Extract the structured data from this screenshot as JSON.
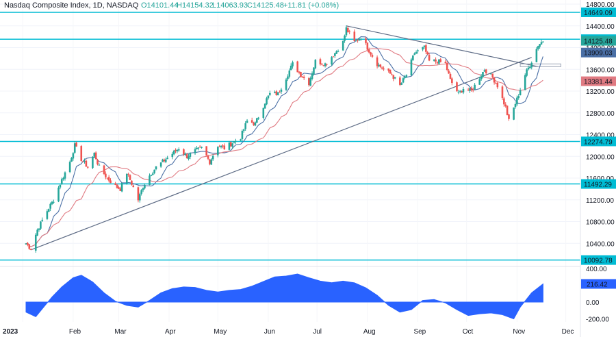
{
  "header": {
    "symbol": "Nasdaq Composite Index, 1D, NASDAQ",
    "open": "O14101.44",
    "high": "H14154.32",
    "low": "L14063.93",
    "close": "C14125.48",
    "change": "+11.81 (+0.08%)"
  },
  "colors": {
    "up": "#26a69a",
    "down": "#ef5350",
    "level": "#00bcd4",
    "trend": "#5d6b85",
    "ma_fast": "#4a6fa5",
    "ma_slow": "#e07a82",
    "osc": "#2962ff"
  },
  "chart_data": [
    {
      "type": "candlestick",
      "title": "Nasdaq Composite Index, 1D, NASDAQ",
      "ylim": [
        10000,
        14800
      ],
      "x_ticks": [
        "2023",
        "Feb",
        "Mar",
        "Apr",
        "May",
        "Jun",
        "Jul",
        "Aug",
        "Sep",
        "Oct",
        "Nov",
        "Dec"
      ],
      "y_ticks": [
        10400,
        10800,
        11200,
        11600,
        12000,
        12400,
        12800,
        13200,
        13600,
        14000,
        14400,
        14800
      ],
      "y_tick_labels": [
        "10400.00",
        "10800.00",
        "11200.00",
        "11600.00",
        "12000.00",
        "12400.00",
        "12800.00",
        "13200.00",
        "13600.00",
        "14000.00",
        "14400.00",
        "14800.00"
      ],
      "levels": [
        14649.09,
        14155.03,
        12274.79,
        11492.29,
        10092.78
      ],
      "level_labels": [
        "14649.09",
        "14155.03",
        "12274.79",
        "11492.29",
        "10092.78"
      ],
      "price_badges": [
        {
          "value": 14125.48,
          "label": "14125.48",
          "color": "#26a69a"
        },
        {
          "value": 13909.03,
          "label": "13909.03",
          "color": "#4a6fa5"
        },
        {
          "value": 13381.44,
          "label": "13381.44",
          "color": "#e07a82"
        }
      ],
      "path": [
        [
          "2023-01-03",
          10400
        ],
        [
          "2023-01-06",
          10300
        ],
        [
          "2023-01-10",
          10650
        ],
        [
          "2023-01-16",
          11000
        ],
        [
          "2023-01-20",
          11200
        ],
        [
          "2023-01-24",
          11500
        ],
        [
          "2023-01-30",
          11900
        ],
        [
          "2023-02-02",
          12200
        ],
        [
          "2023-02-06",
          11950
        ],
        [
          "2023-02-10",
          11800
        ],
        [
          "2023-02-14",
          12050
        ],
        [
          "2023-02-17",
          11800
        ],
        [
          "2023-02-22",
          11600
        ],
        [
          "2023-02-27",
          11450
        ],
        [
          "2023-03-02",
          11400
        ],
        [
          "2023-03-06",
          11700
        ],
        [
          "2023-03-09",
          11500
        ],
        [
          "2023-03-13",
          11200
        ],
        [
          "2023-03-16",
          11450
        ],
        [
          "2023-03-20",
          11650
        ],
        [
          "2023-03-24",
          11800
        ],
        [
          "2023-03-28",
          11900
        ],
        [
          "2023-04-03",
          12050
        ],
        [
          "2023-04-07",
          12150
        ],
        [
          "2023-04-12",
          12000
        ],
        [
          "2023-04-17",
          12100
        ],
        [
          "2023-04-21",
          12150
        ],
        [
          "2023-04-26",
          11900
        ],
        [
          "2023-05-01",
          12200
        ],
        [
          "2023-05-05",
          12150
        ],
        [
          "2023-05-10",
          12250
        ],
        [
          "2023-05-15",
          12350
        ],
        [
          "2023-05-19",
          12650
        ],
        [
          "2023-05-24",
          12600
        ],
        [
          "2023-05-30",
          13000
        ],
        [
          "2023-06-02",
          13150
        ],
        [
          "2023-06-07",
          13150
        ],
        [
          "2023-06-12",
          13450
        ],
        [
          "2023-06-16",
          13700
        ],
        [
          "2023-06-21",
          13500
        ],
        [
          "2023-06-26",
          13350
        ],
        [
          "2023-06-30",
          13750
        ],
        [
          "2023-07-06",
          13700
        ],
        [
          "2023-07-12",
          13900
        ],
        [
          "2023-07-17",
          14100
        ],
        [
          "2023-07-19",
          14350
        ],
        [
          "2023-07-24",
          14100
        ],
        [
          "2023-07-28",
          14200
        ],
        [
          "2023-08-02",
          13950
        ],
        [
          "2023-08-07",
          13700
        ],
        [
          "2023-08-11",
          13600
        ],
        [
          "2023-08-16",
          13500
        ],
        [
          "2023-08-21",
          13300
        ],
        [
          "2023-08-25",
          13500
        ],
        [
          "2023-08-30",
          13900
        ],
        [
          "2023-09-05",
          14000
        ],
        [
          "2023-09-08",
          13750
        ],
        [
          "2023-09-13",
          13750
        ],
        [
          "2023-09-18",
          13700
        ],
        [
          "2023-09-21",
          13400
        ],
        [
          "2023-09-26",
          13150
        ],
        [
          "2023-09-29",
          13250
        ],
        [
          "2023-10-04",
          13200
        ],
        [
          "2023-10-09",
          13450
        ],
        [
          "2023-10-12",
          13600
        ],
        [
          "2023-10-17",
          13450
        ],
        [
          "2023-10-20",
          13300
        ],
        [
          "2023-10-25",
          12900
        ],
        [
          "2023-10-27",
          12650
        ],
        [
          "2023-11-01",
          13050
        ],
        [
          "2023-11-06",
          13500
        ],
        [
          "2023-11-10",
          13750
        ],
        [
          "2023-11-14",
          14050
        ],
        [
          "2023-11-17",
          14125
        ]
      ],
      "trendlines": [
        {
          "from": [
            "2023-01-06",
            10280
          ],
          "to": [
            "2023-11-10",
            13820
          ]
        },
        {
          "from": [
            "2023-07-19",
            14400
          ],
          "to": [
            "2023-11-14",
            13650
          ]
        }
      ]
    },
    {
      "type": "area",
      "ylim": [
        -300,
        400
      ],
      "y_ticks": [
        400,
        0,
        -200
      ],
      "y_tick_labels": [
        "400.00",
        "0.00",
        "-200.00"
      ],
      "last_value": 216.42,
      "last_label": "216.42",
      "series": [
        [
          "2023-01-03",
          -120
        ],
        [
          "2023-01-09",
          -175
        ],
        [
          "2023-01-13",
          -80
        ],
        [
          "2023-01-19",
          60
        ],
        [
          "2023-01-25",
          180
        ],
        [
          "2023-02-01",
          290
        ],
        [
          "2023-02-06",
          320
        ],
        [
          "2023-02-13",
          240
        ],
        [
          "2023-02-20",
          110
        ],
        [
          "2023-02-27",
          10
        ],
        [
          "2023-03-06",
          -40
        ],
        [
          "2023-03-13",
          -60
        ],
        [
          "2023-03-20",
          20
        ],
        [
          "2023-03-27",
          110
        ],
        [
          "2023-04-03",
          160
        ],
        [
          "2023-04-10",
          180
        ],
        [
          "2023-04-17",
          175
        ],
        [
          "2023-04-24",
          140
        ],
        [
          "2023-05-01",
          120
        ],
        [
          "2023-05-08",
          140
        ],
        [
          "2023-05-15",
          150
        ],
        [
          "2023-05-22",
          190
        ],
        [
          "2023-05-29",
          245
        ],
        [
          "2023-06-05",
          300
        ],
        [
          "2023-06-12",
          310
        ],
        [
          "2023-06-19",
          335
        ],
        [
          "2023-06-26",
          290
        ],
        [
          "2023-07-03",
          250
        ],
        [
          "2023-07-10",
          230
        ],
        [
          "2023-07-17",
          250
        ],
        [
          "2023-07-24",
          230
        ],
        [
          "2023-07-31",
          170
        ],
        [
          "2023-08-07",
          80
        ],
        [
          "2023-08-14",
          -40
        ],
        [
          "2023-08-21",
          -120
        ],
        [
          "2023-08-28",
          -90
        ],
        [
          "2023-09-04",
          20
        ],
        [
          "2023-09-11",
          30
        ],
        [
          "2023-09-18",
          -10
        ],
        [
          "2023-09-25",
          -90
        ],
        [
          "2023-10-02",
          -160
        ],
        [
          "2023-10-09",
          -140
        ],
        [
          "2023-10-16",
          -130
        ],
        [
          "2023-10-23",
          -150
        ],
        [
          "2023-10-30",
          -200
        ],
        [
          "2023-11-03",
          -60
        ],
        [
          "2023-11-10",
          110
        ],
        [
          "2023-11-17",
          216
        ]
      ]
    }
  ]
}
